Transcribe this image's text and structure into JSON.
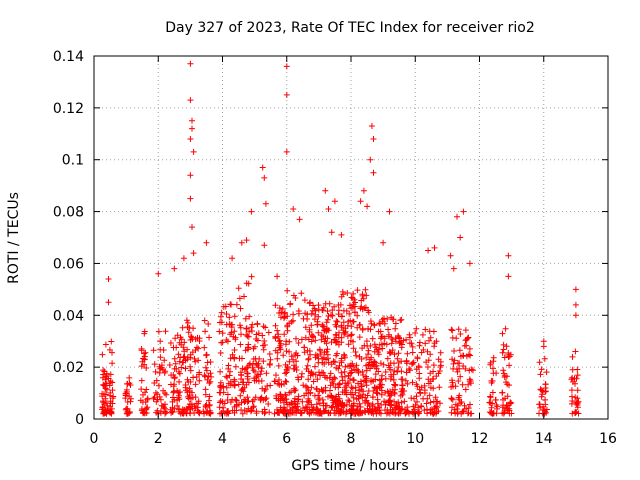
{
  "chart_data": {
    "type": "scatter",
    "title": "Day 327 of 2023, Rate Of TEC Index for receiver rio2",
    "xlabel": "GPS time / hours",
    "ylabel": "ROTI / TECUs",
    "xlim": [
      0,
      16
    ],
    "ylim": [
      0,
      0.14
    ],
    "x_ticks": [
      "0",
      "2",
      "4",
      "6",
      "8",
      "10",
      "12",
      "14",
      "16"
    ],
    "y_ticks": [
      "0",
      "0.02",
      "0.04",
      "0.06",
      "0.08",
      "0.1",
      "0.12",
      "0.14"
    ],
    "grid": true,
    "marker": "+",
    "color": "#ff0000",
    "highlights": [
      [
        3.0,
        0.137
      ],
      [
        3.0,
        0.123
      ],
      [
        3.05,
        0.115
      ],
      [
        3.05,
        0.112
      ],
      [
        3.0,
        0.108
      ],
      [
        3.1,
        0.103
      ],
      [
        3.0,
        0.094
      ],
      [
        3.0,
        0.085
      ],
      [
        3.05,
        0.074
      ],
      [
        3.1,
        0.064
      ],
      [
        5.25,
        0.097
      ],
      [
        5.3,
        0.093
      ],
      [
        5.35,
        0.083
      ],
      [
        5.3,
        0.067
      ],
      [
        6.0,
        0.136
      ],
      [
        6.0,
        0.125
      ],
      [
        6.0,
        0.103
      ],
      [
        6.2,
        0.081
      ],
      [
        6.4,
        0.077
      ],
      [
        4.9,
        0.08
      ],
      [
        4.75,
        0.069
      ],
      [
        4.6,
        0.068
      ],
      [
        3.5,
        0.068
      ],
      [
        7.2,
        0.088
      ],
      [
        7.3,
        0.081
      ],
      [
        7.5,
        0.084
      ],
      [
        7.4,
        0.072
      ],
      [
        7.7,
        0.071
      ],
      [
        8.4,
        0.088
      ],
      [
        8.5,
        0.082
      ],
      [
        8.65,
        0.113
      ],
      [
        8.7,
        0.108
      ],
      [
        8.6,
        0.1
      ],
      [
        8.7,
        0.095
      ],
      [
        8.3,
        0.084
      ],
      [
        9.2,
        0.08
      ],
      [
        9.0,
        0.068
      ],
      [
        10.4,
        0.065
      ],
      [
        10.6,
        0.066
      ],
      [
        11.3,
        0.078
      ],
      [
        11.5,
        0.08
      ],
      [
        11.4,
        0.07
      ],
      [
        11.1,
        0.063
      ],
      [
        11.7,
        0.06
      ],
      [
        11.2,
        0.058
      ],
      [
        12.9,
        0.063
      ],
      [
        12.9,
        0.055
      ],
      [
        0.45,
        0.054
      ],
      [
        0.45,
        0.045
      ],
      [
        2.0,
        0.056
      ],
      [
        2.5,
        0.058
      ],
      [
        2.8,
        0.062
      ],
      [
        4.3,
        0.062
      ],
      [
        5.7,
        0.055
      ],
      [
        15.0,
        0.05
      ],
      [
        15.0,
        0.044
      ],
      [
        15.0,
        0.04
      ],
      [
        14.0,
        0.03
      ],
      [
        14.0,
        0.028
      ]
    ],
    "clusters": [
      {
        "x": [
          0.25,
          0.6
        ],
        "ymax": 0.03,
        "n": 70
      },
      {
        "x": [
          0.95,
          1.15
        ],
        "ymax": 0.018,
        "n": 25
      },
      {
        "x": [
          1.45,
          1.7
        ],
        "ymax": 0.035,
        "n": 35
      },
      {
        "x": [
          1.85,
          2.25
        ],
        "ymax": 0.035,
        "n": 45
      },
      {
        "x": [
          2.35,
          2.95
        ],
        "ymax": 0.04,
        "n": 90
      },
      {
        "x": [
          2.95,
          3.3
        ],
        "ymax": 0.036,
        "n": 55
      },
      {
        "x": [
          3.4,
          3.65
        ],
        "ymax": 0.04,
        "n": 40
      },
      {
        "x": [
          3.9,
          4.45
        ],
        "ymax": 0.045,
        "n": 90
      },
      {
        "x": [
          4.5,
          5.0
        ],
        "ymax": 0.055,
        "n": 80
      },
      {
        "x": [
          5.0,
          5.5
        ],
        "ymax": 0.04,
        "n": 60
      },
      {
        "x": [
          5.6,
          6.0
        ],
        "ymax": 0.045,
        "n": 70
      },
      {
        "x": [
          5.9,
          6.6
        ],
        "ymax": 0.05,
        "n": 110
      },
      {
        "x": [
          6.6,
          7.6
        ],
        "ymax": 0.045,
        "n": 220
      },
      {
        "x": [
          7.6,
          8.6
        ],
        "ymax": 0.05,
        "n": 240
      },
      {
        "x": [
          8.6,
          9.6
        ],
        "ymax": 0.04,
        "n": 200
      },
      {
        "x": [
          9.6,
          10.8
        ],
        "ymax": 0.035,
        "n": 140
      },
      {
        "x": [
          11.1,
          11.8
        ],
        "ymax": 0.035,
        "n": 80
      },
      {
        "x": [
          12.3,
          12.55
        ],
        "ymax": 0.025,
        "n": 30
      },
      {
        "x": [
          12.7,
          13.0
        ],
        "ymax": 0.035,
        "n": 45
      },
      {
        "x": [
          13.85,
          14.1
        ],
        "ymax": 0.025,
        "n": 30
      },
      {
        "x": [
          14.85,
          15.1
        ],
        "ymax": 0.028,
        "n": 30
      }
    ]
  }
}
